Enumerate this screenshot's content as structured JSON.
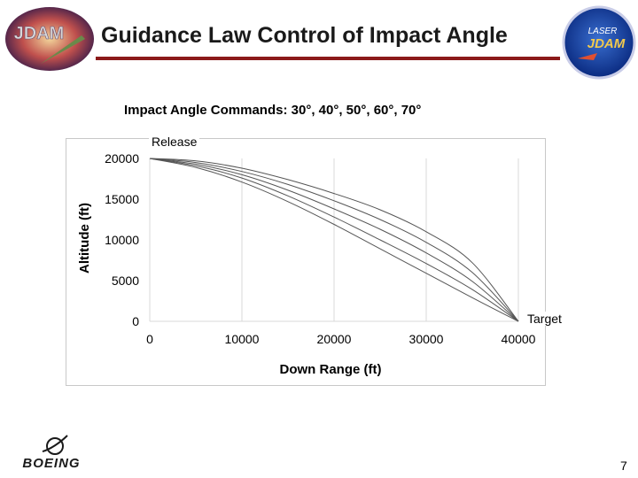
{
  "slide": {
    "title": "Guidance Law Control of Impact Angle",
    "subtitle": "Impact Angle Commands:  30°, 40°, 50°, 60°, 70°",
    "page_number": "7"
  },
  "logos": {
    "left_text": "JDAM",
    "right_text": "JDAM",
    "right_caption": "LASER",
    "boeing_text": "BOEING"
  },
  "colors": {
    "title_rule": "#8b1a1a",
    "grid": "#d9d9d9",
    "curve": "#555555"
  },
  "chart_data": {
    "type": "line",
    "xlabel": "Down Range (ft)",
    "ylabel": "Altitude (ft)",
    "xlim": [
      0,
      40000
    ],
    "ylim": [
      0,
      20000
    ],
    "x_ticks": [
      0,
      10000,
      20000,
      30000,
      40000
    ],
    "y_ticks": [
      0,
      5000,
      10000,
      15000,
      20000
    ],
    "grid": "vertical",
    "annotations": {
      "start": "Release",
      "end": "Target"
    },
    "x": [
      0,
      5000,
      10000,
      15000,
      20000,
      25000,
      30000,
      35000,
      40000
    ],
    "series": [
      {
        "values": [
          20000,
          19700,
          18800,
          17400,
          15700,
          13700,
          11000,
          7200,
          0
        ]
      },
      {
        "values": [
          20000,
          19500,
          18400,
          16800,
          14800,
          12500,
          9700,
          6000,
          0
        ]
      },
      {
        "values": [
          20000,
          19300,
          18000,
          16100,
          13800,
          11300,
          8400,
          4900,
          0
        ]
      },
      {
        "values": [
          20000,
          19100,
          17600,
          15400,
          12800,
          10000,
          7100,
          3900,
          0
        ]
      },
      {
        "values": [
          20000,
          18900,
          17100,
          14700,
          11900,
          8900,
          5900,
          2900,
          0
        ]
      }
    ]
  }
}
